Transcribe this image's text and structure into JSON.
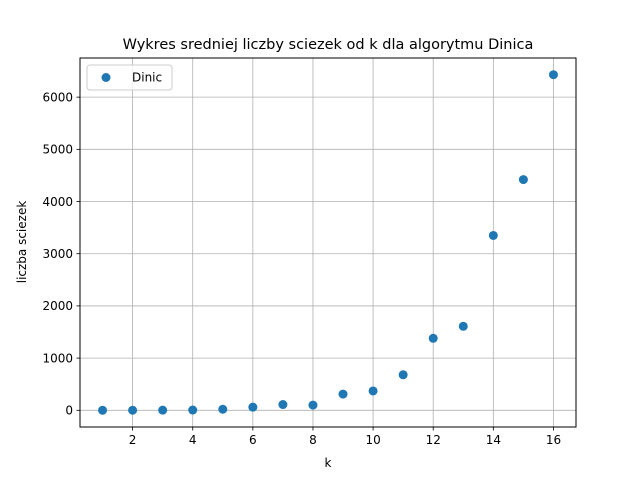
{
  "chart_data": {
    "type": "scatter",
    "title": "Wykres sredniej liczby sciezek od k dla algorytmu Dinica",
    "xlabel": "k",
    "ylabel": "liczba sciezek",
    "xlim": [
      0.25,
      16.75
    ],
    "ylim": [
      -320,
      6750
    ],
    "xticks": [
      2,
      4,
      6,
      8,
      10,
      12,
      14,
      16
    ],
    "yticks": [
      0,
      1000,
      2000,
      3000,
      4000,
      5000,
      6000
    ],
    "grid": true,
    "legend_position": "top-left",
    "series": [
      {
        "name": "Dinic",
        "color": "#1f77b4",
        "x": [
          1,
          2,
          3,
          4,
          5,
          6,
          7,
          8,
          9,
          10,
          11,
          12,
          13,
          14,
          15,
          16
        ],
        "y": [
          0,
          1,
          3,
          5,
          20,
          60,
          110,
          100,
          310,
          370,
          680,
          1380,
          1610,
          3350,
          4420,
          6430
        ]
      }
    ]
  }
}
